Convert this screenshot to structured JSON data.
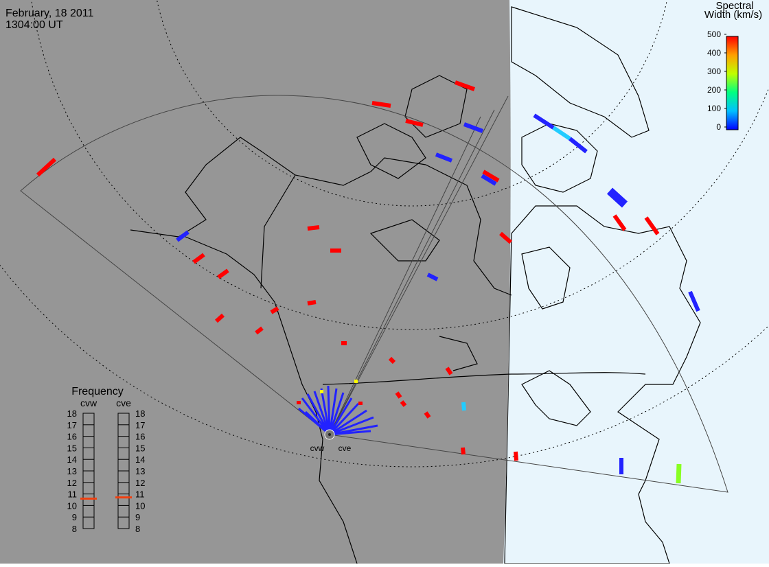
{
  "header": {
    "date": "February, 18 2011",
    "time": "1304:00 UT"
  },
  "colorbar": {
    "title_line1": "Spectral",
    "title_line2": "Width (km/s)",
    "ticks": [
      0,
      100,
      200,
      300,
      400,
      500
    ],
    "range": [
      0,
      500
    ]
  },
  "frequency": {
    "title": "Frequency",
    "ticks": [
      8,
      9,
      10,
      11,
      12,
      13,
      14,
      15,
      16,
      17,
      18
    ],
    "range": [
      8,
      18
    ],
    "radars": [
      {
        "name": "cvw",
        "value": 10.6
      },
      {
        "name": "cve",
        "value": 10.7
      }
    ]
  }
}
